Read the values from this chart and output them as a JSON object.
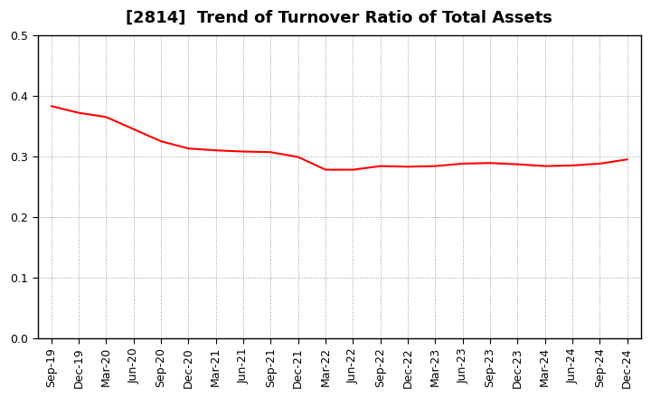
{
  "title": "[2814]  Trend of Turnover Ratio of Total Assets",
  "x_labels": [
    "Sep-19",
    "Dec-19",
    "Mar-20",
    "Jun-20",
    "Sep-20",
    "Dec-20",
    "Mar-21",
    "Jun-21",
    "Sep-21",
    "Dec-21",
    "Mar-22",
    "Jun-22",
    "Sep-22",
    "Dec-22",
    "Mar-23",
    "Jun-23",
    "Sep-23",
    "Dec-23",
    "Mar-24",
    "Jun-24",
    "Sep-24",
    "Dec-24"
  ],
  "y_values": [
    0.383,
    0.372,
    0.365,
    0.345,
    0.325,
    0.313,
    0.31,
    0.308,
    0.307,
    0.299,
    0.278,
    0.278,
    0.284,
    0.283,
    0.284,
    0.288,
    0.289,
    0.287,
    0.284,
    0.285,
    0.288,
    0.295
  ],
  "ylim": [
    0.0,
    0.5
  ],
  "yticks": [
    0.0,
    0.1,
    0.2,
    0.3,
    0.4,
    0.5
  ],
  "line_color": "#FF0000",
  "line_width": 1.5,
  "background_color": "#FFFFFF",
  "grid_color": "#999999",
  "title_fontsize": 13,
  "tick_fontsize": 9,
  "spine_color": "#000000"
}
